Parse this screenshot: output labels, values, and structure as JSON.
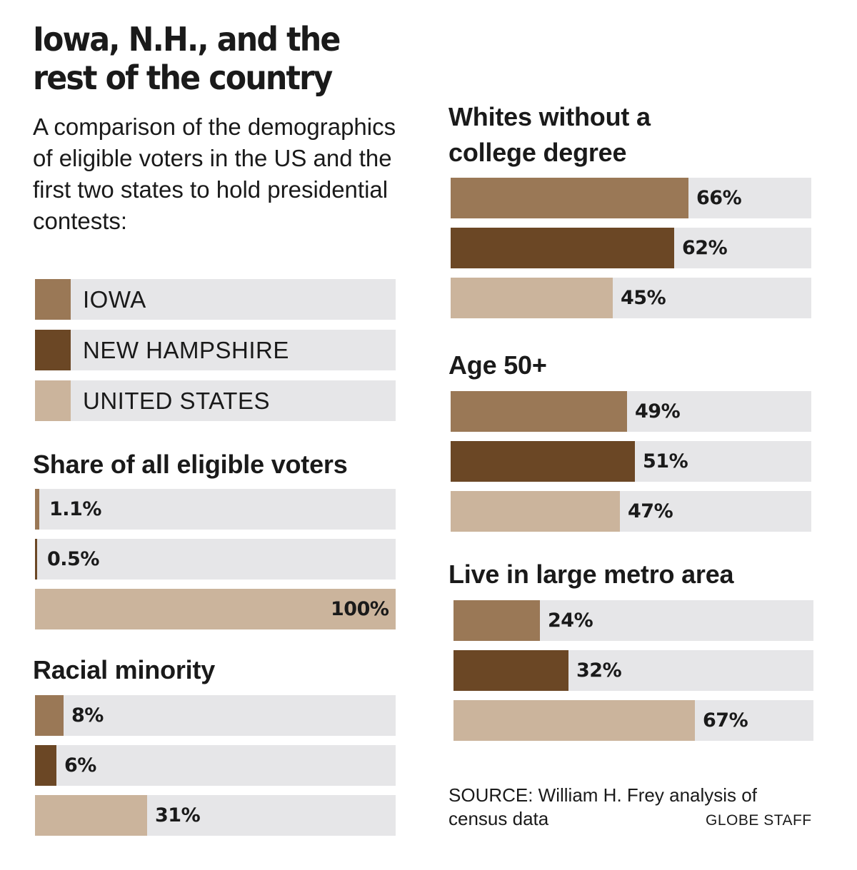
{
  "title": "Iowa, N.H., and the rest of the country",
  "subtitle": "A comparison of the demographics of eligible voters in the US and the first two states to hold presidential contests:",
  "colors": {
    "iowa": "#9a7856",
    "new_hampshire": "#6b4725",
    "united_states": "#cbb49c",
    "track": "#e6e6e8"
  },
  "legend": [
    {
      "key": "iowa",
      "label": "IOWA"
    },
    {
      "key": "new_hampshire",
      "label": "NEW HAMPSHIRE"
    },
    {
      "key": "united_states",
      "label": "UNITED STATES"
    }
  ],
  "chart_data": [
    {
      "type": "bar",
      "title": "Share of all eligible voters",
      "xlim": [
        0,
        100
      ],
      "categories": [
        "IOWA",
        "NEW HAMPSHIRE",
        "UNITED STATES"
      ],
      "values": [
        1.1,
        0.5,
        100
      ],
      "labels": [
        "1.1%",
        "0.5%",
        "100%"
      ]
    },
    {
      "type": "bar",
      "title": "Racial minority",
      "xlim": [
        0,
        100
      ],
      "categories": [
        "IOWA",
        "NEW HAMPSHIRE",
        "UNITED STATES"
      ],
      "values": [
        8,
        6,
        31
      ],
      "labels": [
        "8%",
        "6%",
        "31%"
      ]
    },
    {
      "type": "bar",
      "title": "Whites without a college degree",
      "xlim": [
        0,
        100
      ],
      "categories": [
        "IOWA",
        "NEW HAMPSHIRE",
        "UNITED STATES"
      ],
      "values": [
        66,
        62,
        45
      ],
      "labels": [
        "66%",
        "62%",
        "45%"
      ]
    },
    {
      "type": "bar",
      "title": "Age 50+",
      "xlim": [
        0,
        100
      ],
      "categories": [
        "IOWA",
        "NEW HAMPSHIRE",
        "UNITED STATES"
      ],
      "values": [
        49,
        51,
        47
      ],
      "labels": [
        "49%",
        "51%",
        "47%"
      ]
    },
    {
      "type": "bar",
      "title": "Live in large metro area",
      "xlim": [
        0,
        100
      ],
      "categories": [
        "IOWA",
        "NEW HAMPSHIRE",
        "UNITED STATES"
      ],
      "values": [
        24,
        32,
        67
      ],
      "labels": [
        "24%",
        "32%",
        "67%"
      ]
    }
  ],
  "source": "SOURCE: William H. Frey analysis of census data",
  "credit": "GLOBE STAFF"
}
